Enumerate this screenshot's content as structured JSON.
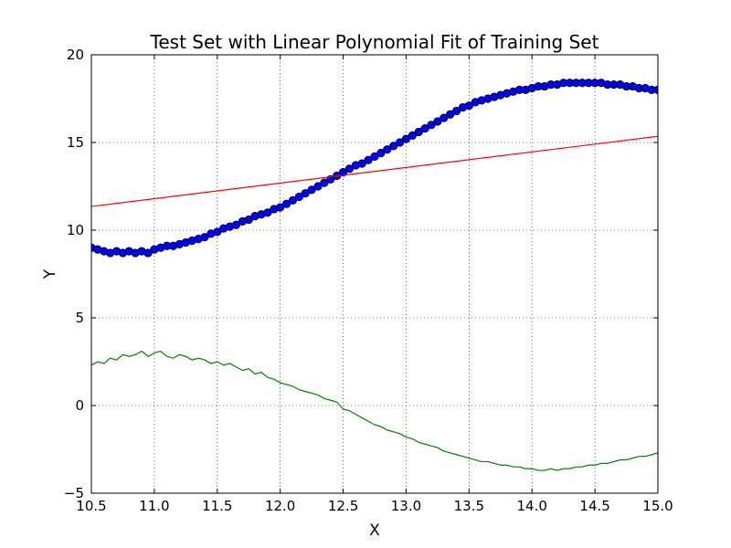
{
  "chart_data": {
    "type": "scatter",
    "title": "Test Set with Linear Polynomial Fit of Training Set",
    "xlabel": "X",
    "ylabel": "Y",
    "xlim": [
      10.5,
      15.0
    ],
    "ylim": [
      -5,
      20
    ],
    "xticks": [
      "10.5",
      "11.0",
      "11.5",
      "12.0",
      "12.5",
      "13.0",
      "13.5",
      "14.0",
      "14.5",
      "15.0"
    ],
    "yticks": [
      "−5",
      "0",
      "5",
      "10",
      "15",
      "20"
    ],
    "grid": true,
    "series": [
      {
        "type": "scatter",
        "color": "#0000ff",
        "x": [
          10.5,
          10.55,
          10.6,
          10.65,
          10.7,
          10.75,
          10.8,
          10.85,
          10.9,
          10.95,
          11.0,
          11.05,
          11.1,
          11.15,
          11.2,
          11.25,
          11.3,
          11.35,
          11.4,
          11.45,
          11.5,
          11.55,
          11.6,
          11.65,
          11.7,
          11.75,
          11.8,
          11.85,
          11.9,
          11.95,
          12.0,
          12.05,
          12.1,
          12.15,
          12.2,
          12.25,
          12.3,
          12.35,
          12.4,
          12.45,
          12.5,
          12.55,
          12.6,
          12.65,
          12.7,
          12.75,
          12.8,
          12.85,
          12.9,
          12.95,
          13.0,
          13.05,
          13.1,
          13.15,
          13.2,
          13.25,
          13.3,
          13.35,
          13.4,
          13.45,
          13.5,
          13.55,
          13.6,
          13.65,
          13.7,
          13.75,
          13.8,
          13.85,
          13.9,
          13.95,
          14.0,
          14.05,
          14.1,
          14.15,
          14.2,
          14.25,
          14.3,
          14.35,
          14.4,
          14.45,
          14.5,
          14.55,
          14.6,
          14.65,
          14.7,
          14.75,
          14.8,
          14.85,
          14.9,
          14.95,
          15.0
        ],
        "y": [
          9.0,
          8.9,
          8.8,
          8.7,
          8.8,
          8.7,
          8.8,
          8.7,
          8.8,
          8.7,
          8.9,
          9.0,
          9.1,
          9.1,
          9.2,
          9.3,
          9.4,
          9.5,
          9.6,
          9.8,
          9.9,
          10.1,
          10.2,
          10.3,
          10.5,
          10.6,
          10.8,
          10.9,
          11.0,
          11.2,
          11.3,
          11.5,
          11.7,
          11.9,
          12.1,
          12.3,
          12.5,
          12.7,
          12.9,
          13.1,
          13.3,
          13.5,
          13.7,
          13.8,
          14.0,
          14.2,
          14.4,
          14.6,
          14.8,
          15.0,
          15.2,
          15.4,
          15.6,
          15.8,
          16.0,
          16.2,
          16.4,
          16.6,
          16.8,
          17.0,
          17.1,
          17.3,
          17.4,
          17.5,
          17.6,
          17.7,
          17.8,
          17.9,
          18.0,
          18.0,
          18.1,
          18.2,
          18.2,
          18.3,
          18.3,
          18.4,
          18.4,
          18.4,
          18.4,
          18.4,
          18.4,
          18.4,
          18.3,
          18.3,
          18.3,
          18.2,
          18.2,
          18.1,
          18.1,
          18.0,
          18.0
        ]
      },
      {
        "type": "line",
        "color": "#ff0000",
        "x": [
          10.5,
          15.0
        ],
        "y": [
          11.35,
          15.35
        ]
      },
      {
        "type": "line",
        "color": "#008000",
        "x": [
          10.5,
          10.55,
          10.6,
          10.65,
          10.7,
          10.75,
          10.8,
          10.85,
          10.9,
          10.95,
          11.0,
          11.05,
          11.1,
          11.15,
          11.2,
          11.25,
          11.3,
          11.35,
          11.4,
          11.45,
          11.5,
          11.55,
          11.6,
          11.65,
          11.7,
          11.75,
          11.8,
          11.85,
          11.9,
          11.95,
          12.0,
          12.05,
          12.1,
          12.15,
          12.2,
          12.25,
          12.3,
          12.35,
          12.4,
          12.45,
          12.5,
          12.55,
          12.6,
          12.65,
          12.7,
          12.75,
          12.8,
          12.85,
          12.9,
          12.95,
          13.0,
          13.05,
          13.1,
          13.15,
          13.2,
          13.25,
          13.3,
          13.35,
          13.4,
          13.45,
          13.5,
          13.55,
          13.6,
          13.65,
          13.7,
          13.75,
          13.8,
          13.85,
          13.9,
          13.95,
          14.0,
          14.05,
          14.1,
          14.15,
          14.2,
          14.25,
          14.3,
          14.35,
          14.4,
          14.45,
          14.5,
          14.55,
          14.6,
          14.65,
          14.7,
          14.75,
          14.8,
          14.85,
          14.9,
          14.95,
          15.0
        ],
        "y": [
          2.3,
          2.5,
          2.4,
          2.7,
          2.6,
          2.9,
          2.8,
          2.9,
          3.1,
          2.8,
          3.0,
          3.1,
          2.8,
          2.7,
          2.9,
          2.8,
          2.6,
          2.7,
          2.6,
          2.4,
          2.5,
          2.3,
          2.4,
          2.2,
          2.0,
          2.1,
          1.8,
          1.9,
          1.6,
          1.5,
          1.3,
          1.2,
          1.1,
          0.9,
          0.8,
          0.7,
          0.6,
          0.4,
          0.3,
          0.2,
          -0.2,
          -0.3,
          -0.5,
          -0.7,
          -0.9,
          -1.1,
          -1.2,
          -1.4,
          -1.5,
          -1.6,
          -1.8,
          -1.9,
          -2.1,
          -2.2,
          -2.3,
          -2.4,
          -2.6,
          -2.7,
          -2.8,
          -2.9,
          -3.0,
          -3.1,
          -3.2,
          -3.2,
          -3.3,
          -3.4,
          -3.4,
          -3.5,
          -3.5,
          -3.6,
          -3.6,
          -3.7,
          -3.7,
          -3.6,
          -3.7,
          -3.6,
          -3.6,
          -3.5,
          -3.5,
          -3.4,
          -3.4,
          -3.3,
          -3.3,
          -3.2,
          -3.1,
          -3.1,
          -3.0,
          -2.9,
          -2.9,
          -2.8,
          -2.7
        ]
      }
    ]
  }
}
